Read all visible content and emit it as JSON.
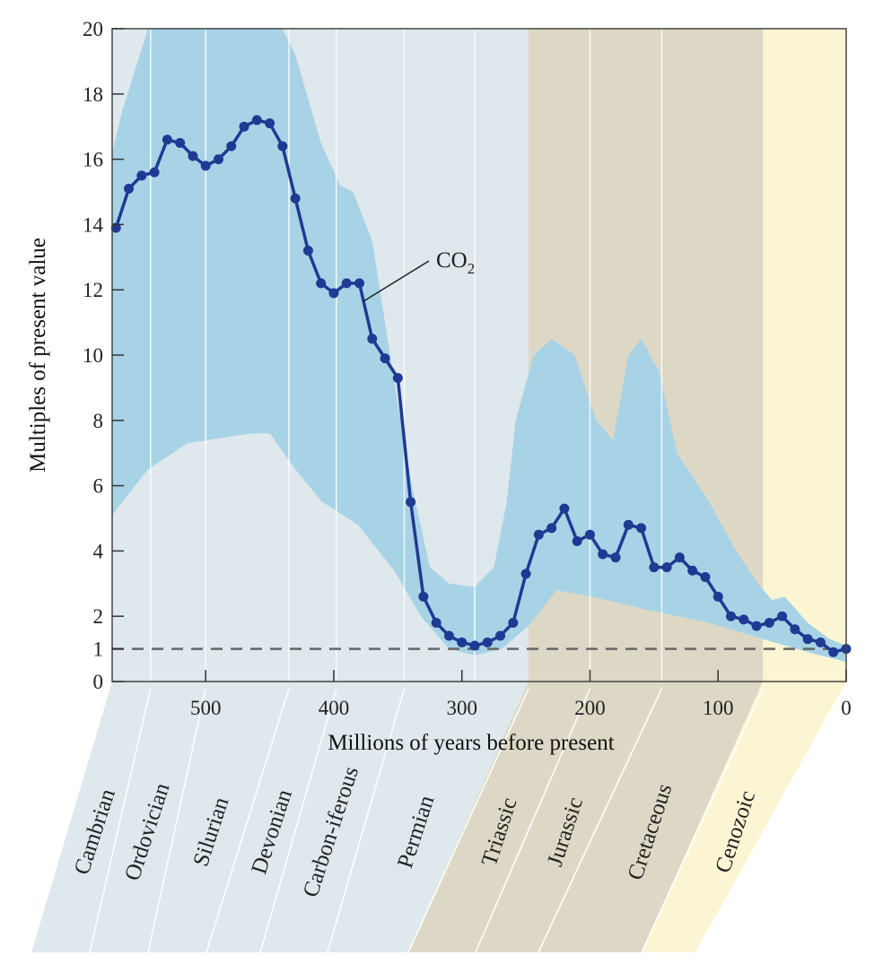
{
  "chart_data": {
    "type": "line",
    "title": "",
    "xlabel": "Millions of years before present",
    "ylabel": "Multiples of present value",
    "xlim": [
      573,
      0
    ],
    "ylim": [
      0,
      20
    ],
    "x_reversed": true,
    "xticks": [
      500,
      400,
      300,
      200,
      100,
      0
    ],
    "yticks": [
      0,
      1,
      2,
      4,
      6,
      8,
      10,
      12,
      14,
      16,
      18,
      20
    ],
    "reference_line": {
      "y": 1,
      "style": "dashed"
    },
    "series": [
      {
        "name": "CO2",
        "label_main": "CO",
        "label_sub": "2",
        "x": [
          570,
          560,
          550,
          540,
          530,
          520,
          510,
          500,
          490,
          480,
          470,
          460,
          450,
          440,
          430,
          420,
          410,
          400,
          390,
          380,
          370,
          360,
          350,
          340,
          330,
          320,
          310,
          300,
          290,
          280,
          270,
          260,
          250,
          240,
          230,
          220,
          210,
          200,
          190,
          180,
          170,
          160,
          150,
          140,
          130,
          120,
          110,
          100,
          90,
          80,
          70,
          60,
          50,
          40,
          30,
          20,
          10,
          0
        ],
        "y": [
          13.9,
          15.1,
          15.5,
          15.6,
          16.6,
          16.5,
          16.1,
          15.8,
          16.0,
          16.4,
          17.0,
          17.2,
          17.1,
          16.4,
          14.8,
          13.2,
          12.2,
          11.9,
          12.2,
          12.2,
          10.5,
          9.9,
          9.3,
          5.5,
          2.6,
          1.8,
          1.4,
          1.2,
          1.1,
          1.2,
          1.4,
          1.8,
          3.3,
          4.5,
          4.7,
          5.3,
          4.3,
          4.5,
          3.9,
          3.8,
          4.8,
          4.7,
          3.5,
          3.5,
          3.8,
          3.4,
          3.2,
          2.6,
          2.0,
          1.9,
          1.7,
          1.8,
          2.0,
          1.6,
          1.3,
          1.2,
          0.9,
          1.0
        ]
      }
    ],
    "uncertainty_band": {
      "upper": {
        "x": [
          573,
          565,
          545,
          500,
          440,
          430,
          410,
          395,
          385,
          370,
          360,
          350,
          339,
          325,
          310,
          290,
          275,
          265,
          258,
          244,
          230,
          212,
          195,
          182,
          170,
          160,
          146,
          132,
          107,
          86,
          69,
          58,
          48,
          30,
          13,
          0
        ],
        "y": [
          16.2,
          17.5,
          20,
          20,
          20,
          19.2,
          16.5,
          15.2,
          15.0,
          13.5,
          11,
          8.5,
          6,
          3.5,
          3.0,
          2.9,
          3.5,
          5.5,
          8,
          10,
          10.5,
          10,
          8,
          7.4,
          10,
          10.5,
          9.5,
          7,
          5.5,
          4,
          3,
          2.5,
          2.6,
          1.8,
          1.3,
          1.1
        ]
      },
      "lower": {
        "x": [
          573,
          545,
          514,
          465,
          450,
          430,
          409,
          381,
          353,
          332,
          310,
          290,
          269,
          248,
          226,
          198,
          156,
          107,
          65,
          30,
          0
        ],
        "y": [
          5.1,
          6.5,
          7.3,
          7.6,
          7.6,
          6.5,
          5.5,
          4.8,
          3.4,
          2.0,
          1.0,
          0.8,
          1.0,
          1.7,
          2.8,
          2.6,
          2.2,
          1.8,
          1.3,
          0.9,
          0.6
        ]
      }
    },
    "periods": [
      {
        "name": "Cambrian",
        "start": 573,
        "end": 543,
        "era": "paleozoic"
      },
      {
        "name": "Ordovician",
        "start": 543,
        "end": 500,
        "era": "paleozoic"
      },
      {
        "name": "Silurian",
        "start": 500,
        "end": 435,
        "era": "paleozoic"
      },
      {
        "name": "Devonian",
        "start": 435,
        "end": 398,
        "era": "paleozoic"
      },
      {
        "name": "Carbon-iferous",
        "start": 398,
        "end": 345,
        "era": "paleozoic"
      },
      {
        "name": "Permian",
        "start": 345,
        "end": 290,
        "era": "paleozoic"
      },
      {
        "name": "Triassic",
        "start": 248,
        "end": 200,
        "era": "mesozoic"
      },
      {
        "name": "Jurassic",
        "start": 200,
        "end": 144,
        "era": "mesozoic"
      },
      {
        "name": "Cretaceous",
        "start": 144,
        "end": 65,
        "era": "mesozoic"
      },
      {
        "name": "Cenozoic",
        "start": 65,
        "end": 0,
        "era": "cenozoic"
      }
    ],
    "period_boundaries": [
      543,
      500,
      435,
      398,
      345,
      290,
      248,
      200,
      144,
      65
    ],
    "colors": {
      "line": "#1f3a93",
      "band": "#a8d3e6",
      "paleozoic": "#dfe8ec",
      "mesozoic": "#ddd8c5",
      "cenozoic": "#fcf5d3",
      "axis": "#444444"
    }
  }
}
